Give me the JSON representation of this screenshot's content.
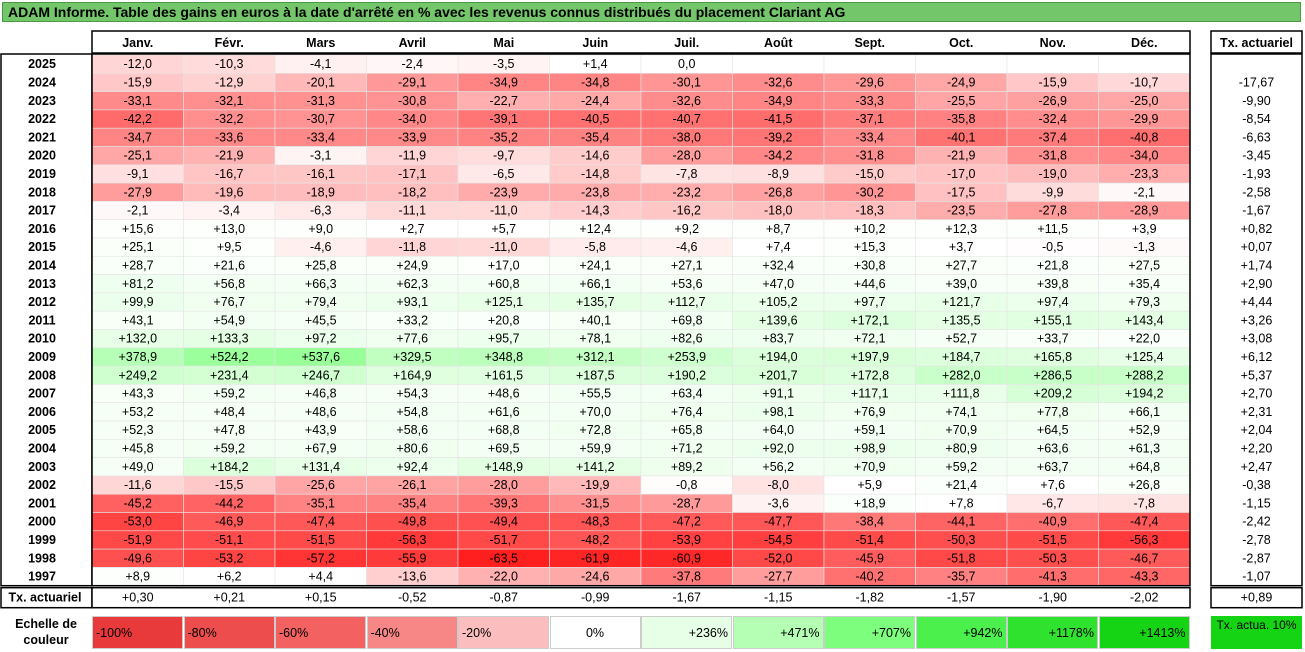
{
  "title": "ADAM Informe. Table des gains en euros à la date d'arrêté en % avec les revenus connus distribués du placement Clariant AG",
  "chart_data": {
    "type": "heatmap",
    "title": "ADAM Informe. Table des gains en euros à la date d'arrêté en % avec les revenus connus distribués du placement Clariant AG",
    "columns": [
      "Janv.",
      "Févr.",
      "Mars",
      "Avril",
      "Mai",
      "Juin",
      "Juil.",
      "Août",
      "Sept.",
      "Oct.",
      "Nov.",
      "Déc."
    ],
    "rate_header": "Tx. actuariel",
    "rows": [
      {
        "year": "2025",
        "values": [
          "-12,0",
          "-10,3",
          "-4,1",
          "-2,4",
          "-3,5",
          "+1,4",
          "0,0",
          "",
          "",
          "",
          "",
          ""
        ],
        "rate": ""
      },
      {
        "year": "2024",
        "values": [
          "-15,9",
          "-12,9",
          "-20,1",
          "-29,1",
          "-34,9",
          "-34,8",
          "-30,1",
          "-32,6",
          "-29,6",
          "-24,9",
          "-15,9",
          "-10,7"
        ],
        "rate": "-17,67"
      },
      {
        "year": "2023",
        "values": [
          "-33,1",
          "-32,1",
          "-31,3",
          "-30,8",
          "-22,7",
          "-24,4",
          "-32,6",
          "-34,9",
          "-33,3",
          "-25,5",
          "-26,9",
          "-25,0"
        ],
        "rate": "-9,90"
      },
      {
        "year": "2022",
        "values": [
          "-42,2",
          "-32,2",
          "-30,7",
          "-34,0",
          "-39,1",
          "-40,5",
          "-40,7",
          "-41,5",
          "-37,1",
          "-35,8",
          "-32,4",
          "-29,9"
        ],
        "rate": "-8,54"
      },
      {
        "year": "2021",
        "values": [
          "-34,7",
          "-33,6",
          "-33,4",
          "-33,9",
          "-35,2",
          "-35,4",
          "-38,0",
          "-39,2",
          "-33,4",
          "-40,1",
          "-37,4",
          "-40,8"
        ],
        "rate": "-6,63"
      },
      {
        "year": "2020",
        "values": [
          "-25,1",
          "-21,9",
          "-3,1",
          "-11,9",
          "-9,7",
          "-14,6",
          "-28,0",
          "-34,2",
          "-31,8",
          "-21,9",
          "-31,8",
          "-34,0"
        ],
        "rate": "-3,45"
      },
      {
        "year": "2019",
        "values": [
          "-9,1",
          "-16,7",
          "-16,1",
          "-17,1",
          "-6,5",
          "-14,8",
          "-7,8",
          "-8,9",
          "-15,0",
          "-17,0",
          "-19,0",
          "-23,3"
        ],
        "rate": "-1,93"
      },
      {
        "year": "2018",
        "values": [
          "-27,9",
          "-19,6",
          "-18,9",
          "-18,2",
          "-23,9",
          "-23,8",
          "-23,2",
          "-26,8",
          "-30,2",
          "-17,5",
          "-9,9",
          "-2,1"
        ],
        "rate": "-2,58"
      },
      {
        "year": "2017",
        "values": [
          "-2,1",
          "-3,4",
          "-6,3",
          "-11,1",
          "-11,0",
          "-14,3",
          "-16,2",
          "-18,0",
          "-18,3",
          "-23,5",
          "-27,8",
          "-28,9"
        ],
        "rate": "-1,67"
      },
      {
        "year": "2016",
        "values": [
          "+15,6",
          "+13,0",
          "+9,0",
          "+2,7",
          "+5,7",
          "+12,4",
          "+9,2",
          "+8,7",
          "+10,2",
          "+12,3",
          "+11,5",
          "+3,9"
        ],
        "rate": "+0,82"
      },
      {
        "year": "2015",
        "values": [
          "+25,1",
          "+9,5",
          "-4,6",
          "-11,8",
          "-11,0",
          "-5,8",
          "-4,6",
          "+7,4",
          "+15,3",
          "+3,7",
          "-0,5",
          "-1,3"
        ],
        "rate": "+0,07"
      },
      {
        "year": "2014",
        "values": [
          "+28,7",
          "+21,6",
          "+25,8",
          "+24,9",
          "+17,0",
          "+24,1",
          "+27,1",
          "+32,4",
          "+30,8",
          "+27,7",
          "+21,8",
          "+27,5"
        ],
        "rate": "+1,74"
      },
      {
        "year": "2013",
        "values": [
          "+81,2",
          "+56,8",
          "+66,3",
          "+62,3",
          "+60,8",
          "+66,1",
          "+53,6",
          "+47,0",
          "+44,6",
          "+39,0",
          "+39,8",
          "+35,4"
        ],
        "rate": "+2,90"
      },
      {
        "year": "2012",
        "values": [
          "+99,9",
          "+76,7",
          "+79,4",
          "+93,1",
          "+125,1",
          "+135,7",
          "+112,7",
          "+105,2",
          "+97,7",
          "+121,7",
          "+97,4",
          "+79,3"
        ],
        "rate": "+4,44"
      },
      {
        "year": "2011",
        "values": [
          "+43,1",
          "+54,9",
          "+45,5",
          "+33,2",
          "+20,8",
          "+40,1",
          "+69,8",
          "+139,6",
          "+172,1",
          "+135,5",
          "+155,1",
          "+143,4"
        ],
        "rate": "+3,26"
      },
      {
        "year": "2010",
        "values": [
          "+132,0",
          "+133,3",
          "+97,2",
          "+77,6",
          "+95,7",
          "+78,1",
          "+82,6",
          "+83,7",
          "+72,1",
          "+52,7",
          "+33,7",
          "+22,0"
        ],
        "rate": "+3,08"
      },
      {
        "year": "2009",
        "values": [
          "+378,9",
          "+524,2",
          "+537,6",
          "+329,5",
          "+348,8",
          "+312,1",
          "+253,9",
          "+194,0",
          "+197,9",
          "+184,7",
          "+165,8",
          "+125,4"
        ],
        "rate": "+6,12"
      },
      {
        "year": "2008",
        "values": [
          "+249,2",
          "+231,4",
          "+246,7",
          "+164,9",
          "+161,5",
          "+187,5",
          "+190,2",
          "+201,7",
          "+172,8",
          "+282,0",
          "+286,5",
          "+288,2"
        ],
        "rate": "+5,37"
      },
      {
        "year": "2007",
        "values": [
          "+43,3",
          "+59,2",
          "+46,8",
          "+54,3",
          "+48,6",
          "+55,5",
          "+63,4",
          "+91,1",
          "+117,1",
          "+111,8",
          "+209,2",
          "+194,2"
        ],
        "rate": "+2,70"
      },
      {
        "year": "2006",
        "values": [
          "+53,2",
          "+48,4",
          "+48,6",
          "+54,8",
          "+61,6",
          "+70,0",
          "+76,4",
          "+98,1",
          "+76,9",
          "+74,1",
          "+77,8",
          "+66,1"
        ],
        "rate": "+2,31"
      },
      {
        "year": "2005",
        "values": [
          "+52,3",
          "+47,8",
          "+43,9",
          "+58,6",
          "+68,8",
          "+72,8",
          "+65,8",
          "+64,0",
          "+59,1",
          "+70,9",
          "+64,5",
          "+52,9"
        ],
        "rate": "+2,04"
      },
      {
        "year": "2004",
        "values": [
          "+45,8",
          "+59,2",
          "+67,9",
          "+80,6",
          "+69,5",
          "+59,9",
          "+71,2",
          "+92,0",
          "+98,9",
          "+80,9",
          "+63,6",
          "+61,3"
        ],
        "rate": "+2,20"
      },
      {
        "year": "2003",
        "values": [
          "+49,0",
          "+184,2",
          "+131,4",
          "+92,4",
          "+148,9",
          "+141,2",
          "+89,2",
          "+56,2",
          "+70,9",
          "+59,2",
          "+63,7",
          "+64,8"
        ],
        "rate": "+2,47"
      },
      {
        "year": "2002",
        "values": [
          "-11,6",
          "-15,5",
          "-25,6",
          "-26,1",
          "-28,0",
          "-19,9",
          "-0,8",
          "-8,0",
          "+5,9",
          "+21,4",
          "+7,6",
          "+26,8"
        ],
        "rate": "-0,38"
      },
      {
        "year": "2001",
        "values": [
          "-45,2",
          "-44,2",
          "-35,1",
          "-35,4",
          "-39,3",
          "-31,5",
          "-28,7",
          "-3,6",
          "+18,9",
          "+7,8",
          "-6,7",
          "-7,8"
        ],
        "rate": "-1,15"
      },
      {
        "year": "2000",
        "values": [
          "-53,0",
          "-46,9",
          "-47,4",
          "-49,8",
          "-49,4",
          "-48,3",
          "-47,2",
          "-47,7",
          "-38,4",
          "-44,1",
          "-40,9",
          "-47,4"
        ],
        "rate": "-2,42"
      },
      {
        "year": "1999",
        "values": [
          "-51,9",
          "-51,1",
          "-51,5",
          "-56,3",
          "-51,7",
          "-48,2",
          "-53,9",
          "-54,5",
          "-51,4",
          "-50,3",
          "-51,5",
          "-56,3"
        ],
        "rate": "-2,78"
      },
      {
        "year": "1998",
        "values": [
          "-49,6",
          "-53,2",
          "-57,2",
          "-55,9",
          "-63,5",
          "-61,9",
          "-60,9",
          "-52,0",
          "-45,9",
          "-51,8",
          "-50,3",
          "-46,7"
        ],
        "rate": "-2,87"
      },
      {
        "year": "1997",
        "values": [
          "+8,9",
          "+6,2",
          "+4,4",
          "-13,6",
          "-22,0",
          "-24,6",
          "-37,8",
          "-27,7",
          "-40,2",
          "-35,7",
          "-41,3",
          "-43,3"
        ],
        "rate": "-1,07"
      }
    ],
    "footer": {
      "label": "Tx. actuariel",
      "values": [
        "+0,30",
        "+0,21",
        "+0,15",
        "-0,52",
        "-0,87",
        "-0,99",
        "-1,67",
        "-1,15",
        "-1,82",
        "-1,57",
        "-1,90",
        "-2,02"
      ],
      "rate": "+0,89"
    },
    "scale": {
      "label": "Echelle de couleur",
      "steps": [
        {
          "label": "-100%",
          "color": "#e83a3a"
        },
        {
          "label": "-80%",
          "color": "#ee4d4d"
        },
        {
          "label": "-60%",
          "color": "#f36161"
        },
        {
          "label": "-40%",
          "color": "#f78686"
        },
        {
          "label": "-20%",
          "color": "#fbbdbd"
        },
        {
          "label": "0%",
          "color": "#ffffff"
        },
        {
          "label": "+236%",
          "color": "#e6ffe6"
        },
        {
          "label": "+471%",
          "color": "#b5ffb5"
        },
        {
          "label": "+707%",
          "color": "#7dff7d"
        },
        {
          "label": "+942%",
          "color": "#4cf04c"
        },
        {
          "label": "+1178%",
          "color": "#2ee22e"
        },
        {
          "label": "+1413%",
          "color": "#14d414"
        }
      ],
      "target_label": "Tx. actua. 10%",
      "target_color": "#14d414"
    }
  }
}
